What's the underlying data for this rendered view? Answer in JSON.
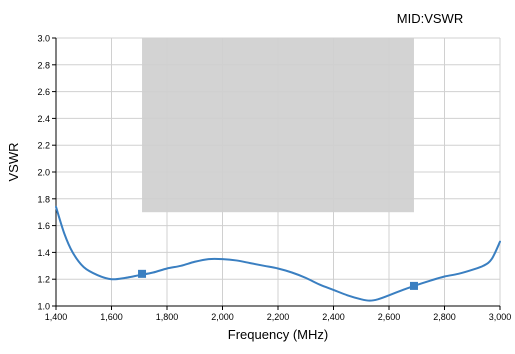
{
  "chart_data": {
    "type": "line",
    "title": "MID:VSWR",
    "xlabel": "Frequency (MHz)",
    "ylabel": "VSWR",
    "xlim": [
      1400,
      3000
    ],
    "ylim": [
      1.0,
      3.0
    ],
    "x_ticks": [
      1400,
      1600,
      1800,
      2000,
      2200,
      2400,
      2600,
      2800,
      3000
    ],
    "x_tick_labels": [
      "1,400",
      "1,600",
      "1,800",
      "2,000",
      "2,200",
      "2,400",
      "2,600",
      "2,800",
      "3,000"
    ],
    "y_ticks": [
      1.0,
      1.2,
      1.4,
      1.6,
      1.8,
      2.0,
      2.2,
      2.4,
      2.6,
      2.8,
      3.0
    ],
    "y_tick_labels": [
      "1.0",
      "1.2",
      "1.4",
      "1.6",
      "1.8",
      "2.0",
      "2.2",
      "2.4",
      "2.6",
      "2.8",
      "3.0"
    ],
    "grid": true,
    "band_region": {
      "x": [
        1710,
        2690
      ],
      "y": [
        1.7,
        3.0
      ],
      "color": "#d3d3d3"
    },
    "series": [
      {
        "color": "#3a7fc1",
        "x": [
          1400,
          1430,
          1460,
          1500,
          1550,
          1600,
          1650,
          1700,
          1750,
          1800,
          1850,
          1900,
          1950,
          2000,
          2050,
          2100,
          2150,
          2200,
          2250,
          2300,
          2350,
          2400,
          2450,
          2500,
          2530,
          2560,
          2600,
          2650,
          2690,
          2750,
          2800,
          2850,
          2900,
          2940,
          2970,
          3000
        ],
        "y": [
          1.74,
          1.54,
          1.4,
          1.29,
          1.23,
          1.2,
          1.21,
          1.23,
          1.25,
          1.28,
          1.3,
          1.33,
          1.35,
          1.35,
          1.34,
          1.32,
          1.3,
          1.28,
          1.25,
          1.21,
          1.16,
          1.12,
          1.08,
          1.05,
          1.04,
          1.05,
          1.08,
          1.12,
          1.15,
          1.19,
          1.22,
          1.24,
          1.27,
          1.3,
          1.35,
          1.48
        ]
      }
    ],
    "markers": [
      {
        "x": 1710,
        "y": 1.24
      },
      {
        "x": 2690,
        "y": 1.15
      }
    ]
  },
  "colors": {
    "line": "#3a7fc1",
    "marker": "#3a7fc1",
    "band": "#d3d3d3",
    "grid": "#d0d0d0",
    "axis": "#000000",
    "text": "#000000"
  }
}
